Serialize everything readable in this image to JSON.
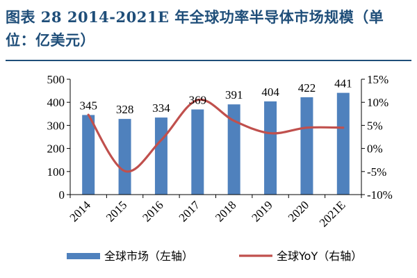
{
  "figure": {
    "title": "图表 28   2014-2021E 年全球功率半导体市场规模（单位：亿美元）"
  },
  "chart_data": {
    "type": "bar",
    "categories": [
      "2014",
      "2015",
      "2016",
      "2017",
      "2018",
      "2019",
      "2020",
      "2021E"
    ],
    "series": [
      {
        "name": "全球市场（左轴）",
        "type": "bar",
        "axis": "left",
        "color": "#4f81bd",
        "values": [
          345,
          328,
          334,
          369,
          391,
          404,
          422,
          441
        ]
      },
      {
        "name": "全球YoY（右轴）",
        "type": "line",
        "axis": "right",
        "color": "#c0504d",
        "values": [
          7.3,
          -4.9,
          1.8,
          10.5,
          6.0,
          3.3,
          4.5,
          4.5
        ]
      }
    ],
    "y_left": {
      "range": [
        0,
        500
      ],
      "ticks": [
        "0",
        "100",
        "200",
        "300",
        "400",
        "500"
      ]
    },
    "y_right": {
      "range": [
        -10,
        15
      ],
      "unit": "%",
      "ticks": [
        "-10%",
        "-5%",
        "0%",
        "5%",
        "10%",
        "15%"
      ]
    },
    "xlabel": "",
    "grid": false,
    "legend_position": "bottom"
  }
}
